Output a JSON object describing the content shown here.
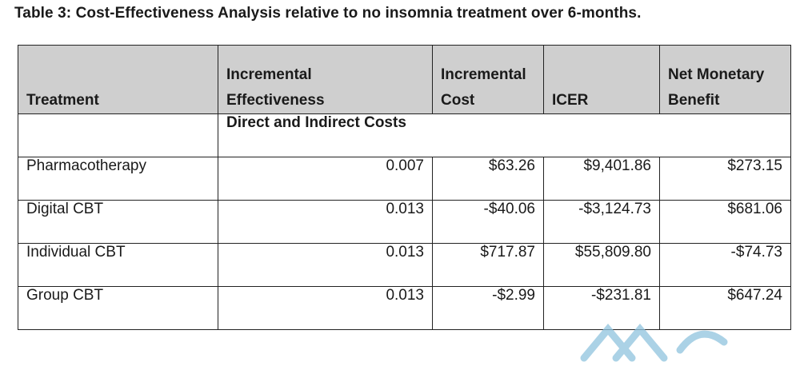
{
  "caption": "Table 3: Cost-Effectiveness Analysis relative to no insomnia treatment over 6-months.",
  "headers": {
    "treatment": "Treatment",
    "effectiveness_l1": "Incremental",
    "effectiveness_l2": "Effectiveness",
    "cost_l1": "Incremental",
    "cost_l2": "Cost",
    "icer": "ICER",
    "nmb_l1": "Net Monetary",
    "nmb_l2": "Benefit"
  },
  "section": "Direct and Indirect Costs",
  "rows": [
    {
      "treatment": "Pharmacotherapy",
      "effectiveness": "0.007",
      "cost": "$63.26",
      "icer": "$9,401.86",
      "nmb": "$273.15"
    },
    {
      "treatment": "Digital CBT",
      "effectiveness": "0.013",
      "cost": "-$40.06",
      "icer": "-$3,124.73",
      "nmb": "$681.06"
    },
    {
      "treatment": "Individual CBT",
      "effectiveness": "0.013",
      "cost": "$717.87",
      "icer": "$55,809.80",
      "nmb": "-$74.73"
    },
    {
      "treatment": "Group CBT",
      "effectiveness": "0.013",
      "cost": "-$2.99",
      "icer": "-$231.81",
      "nmb": "$647.24"
    }
  ],
  "colors": {
    "header_bg": "#cfcfcf",
    "border": "#222222",
    "watermark": "#8fc3de"
  }
}
